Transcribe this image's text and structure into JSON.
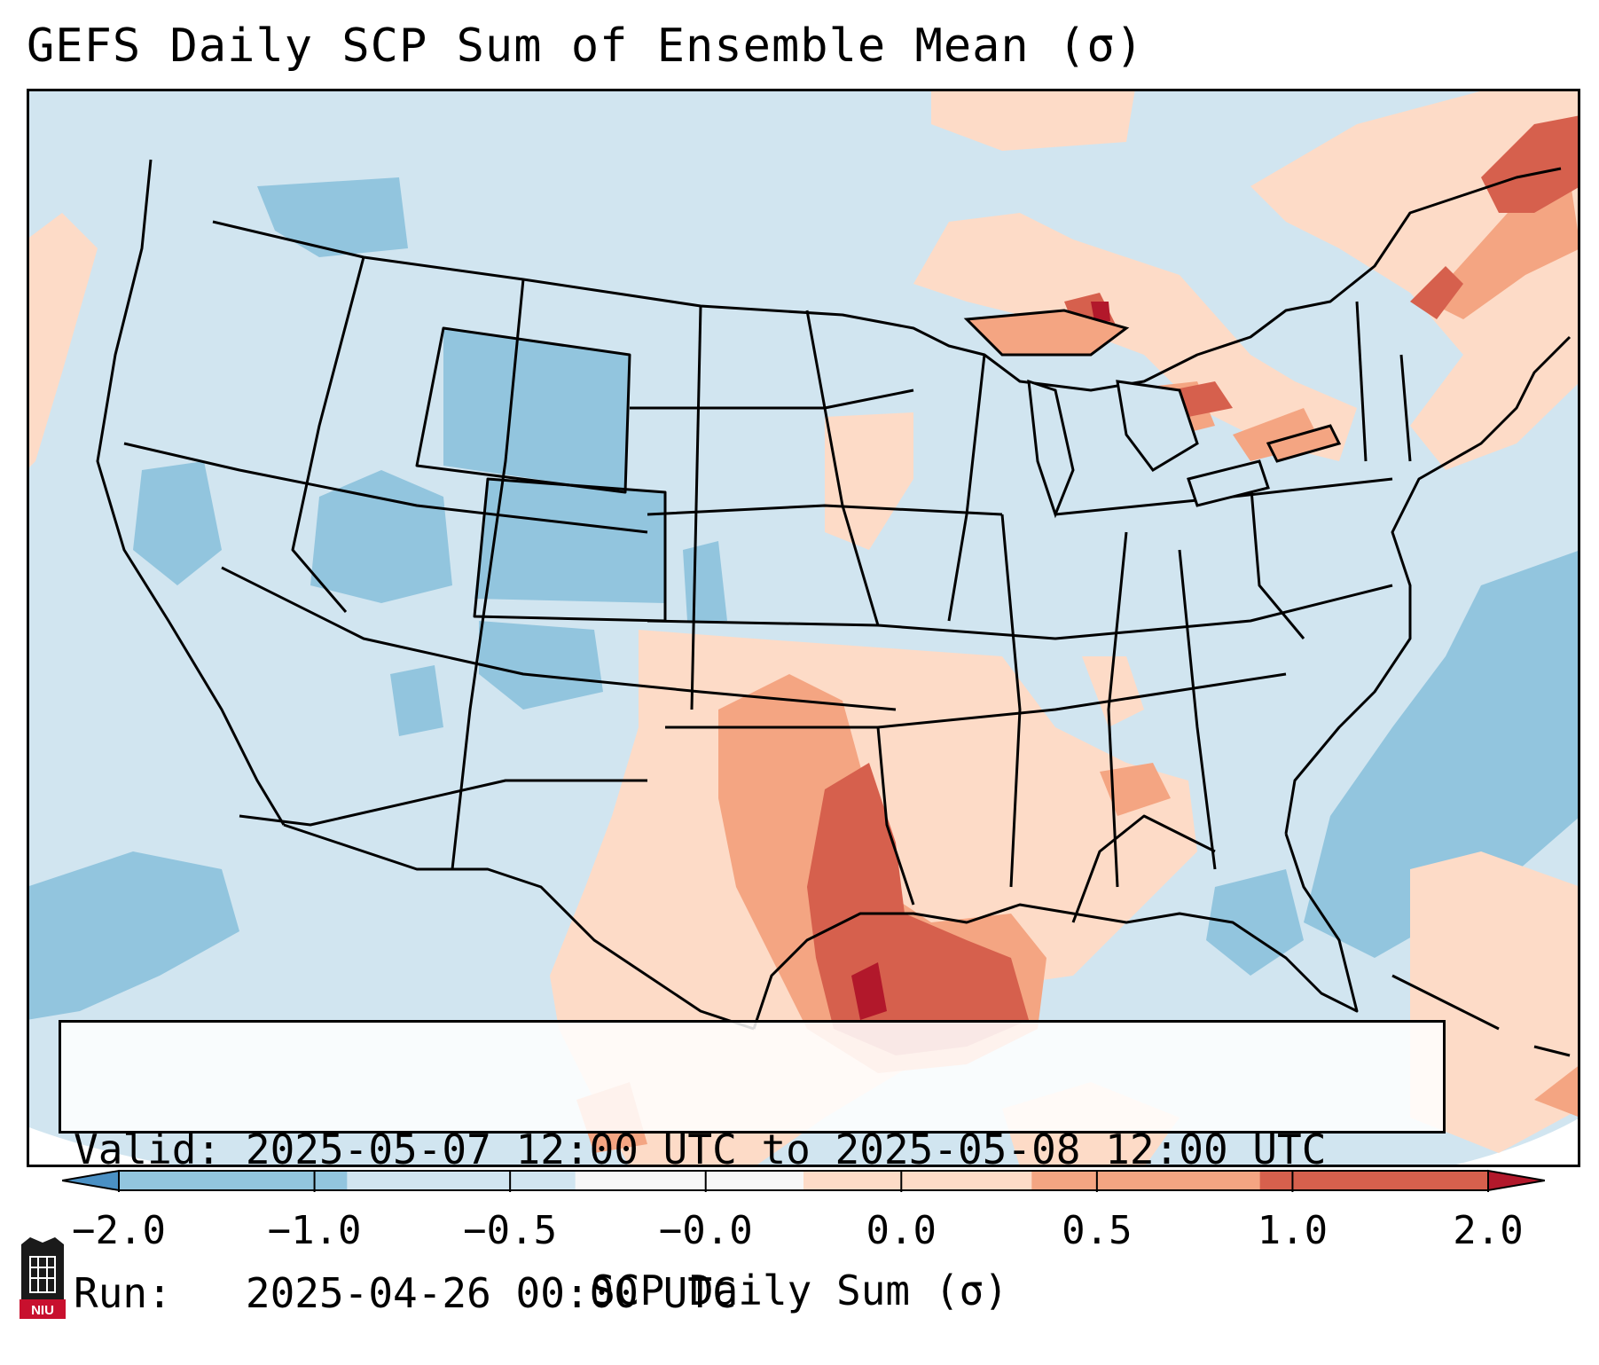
{
  "title": "GEFS Daily SCP Sum of Ensemble Mean (σ)",
  "info": {
    "valid_label": "Valid:",
    "valid_value": "2025-05-07 12:00 UTC to 2025-05-08 12:00 UTC",
    "run_label": "Run:",
    "run_value": "2025-04-26 00:00 UTC"
  },
  "colorbar": {
    "label": "SCP Daily Sum (σ)",
    "ticks": [
      "−2.0",
      "−1.0",
      "−0.5",
      "−0.0",
      "0.0",
      "0.5",
      "1.0",
      "2.0"
    ],
    "colors": [
      "#4a90c4",
      "#92c5de",
      "#d1e5f0",
      "#f7f7f7",
      "#fddbc7",
      "#f4a582",
      "#d6604d",
      "#b2182b"
    ],
    "extend": "both"
  },
  "map": {
    "region": "Contiguous United States",
    "projection": "lambert-conformal",
    "base_color": "#d1e5f0",
    "anomaly_high_area": "Texas Gulf Coast",
    "coast_color": "#000000"
  },
  "logo": {
    "text": "NIU",
    "icon": "university-tower-icon"
  }
}
